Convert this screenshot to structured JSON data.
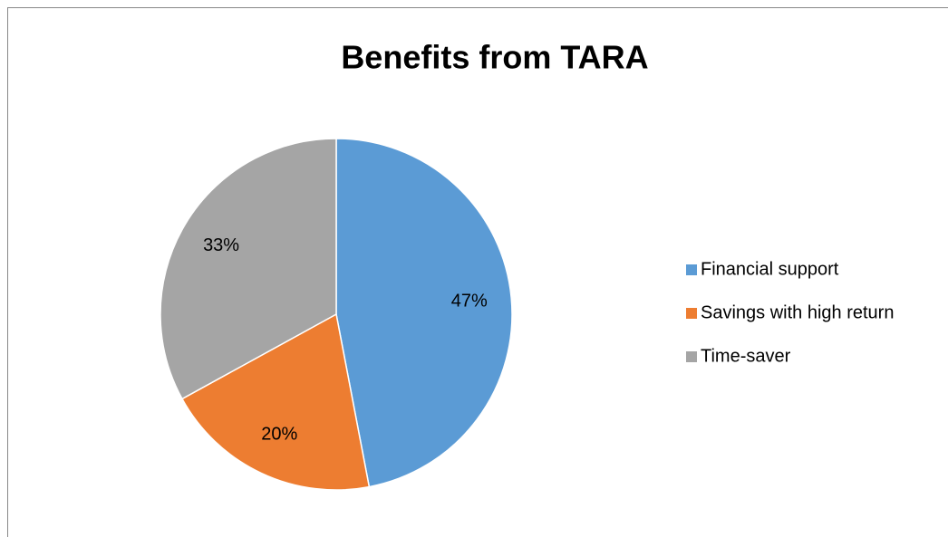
{
  "chart_data": {
    "type": "pie",
    "title": "Benefits from TARA",
    "categories": [
      "Financial support",
      "Savings with high return",
      "Time-saver"
    ],
    "values": [
      47,
      20,
      33
    ],
    "value_labels": [
      "47%",
      "20%",
      "33%"
    ],
    "colors": [
      "#5b9bd5",
      "#ed7d31",
      "#a5a5a5"
    ],
    "legend": "right"
  }
}
